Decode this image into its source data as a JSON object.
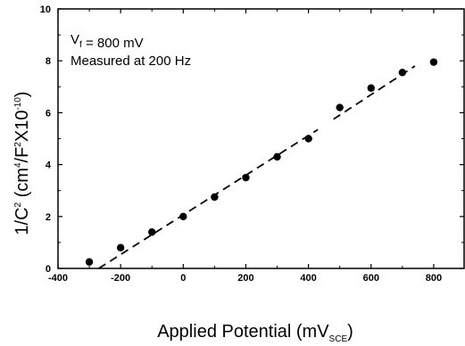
{
  "chart_data": {
    "type": "scatter",
    "xlabel": {
      "main": "Applied Potential (mV",
      "sub": "SCE",
      "close": ")"
    },
    "ylabel": {
      "p1": "1/C",
      "s1": "2",
      "p2": " (cm",
      "s2": "4",
      "p3": "/F",
      "s3": "2",
      "p4": "X10",
      "s4": "-10",
      "p5": ")"
    },
    "xlim": [
      -400,
      900
    ],
    "ylim": [
      0,
      10
    ],
    "xticks": [
      -400,
      -200,
      0,
      200,
      400,
      600,
      800
    ],
    "yticks": [
      0,
      2,
      4,
      6,
      8,
      10
    ],
    "xtick_labels": [
      "-400",
      "-200",
      "0",
      "200",
      "400",
      "600",
      "800"
    ],
    "ytick_labels": [
      "0",
      "2",
      "4",
      "6",
      "8",
      "10"
    ],
    "annotations": [
      {
        "parts": [
          {
            "t": "V"
          },
          {
            "t": "f",
            "sub": true
          },
          {
            "t": " = 800 mV"
          }
        ]
      },
      {
        "parts": [
          {
            "t": "Measured at 200 Hz"
          }
        ]
      }
    ],
    "series": [
      {
        "style": "markers",
        "x": [
          -300,
          -200,
          -100,
          0,
          100,
          200,
          300,
          400,
          500,
          600,
          700,
          800
        ],
        "y": [
          0.25,
          0.8,
          1.4,
          2.0,
          2.75,
          3.5,
          4.3,
          5.0,
          6.2,
          6.95,
          7.55,
          7.95
        ]
      },
      {
        "style": "dashed-line",
        "x": [
          -270,
          430,
          480,
          740
        ],
        "y": [
          0.0,
          5.35,
          5.75,
          7.8
        ],
        "segments": [
          [
            0,
            1
          ],
          [
            2,
            3
          ]
        ]
      }
    ],
    "grid": false,
    "ticks_on_all_sides": true
  }
}
